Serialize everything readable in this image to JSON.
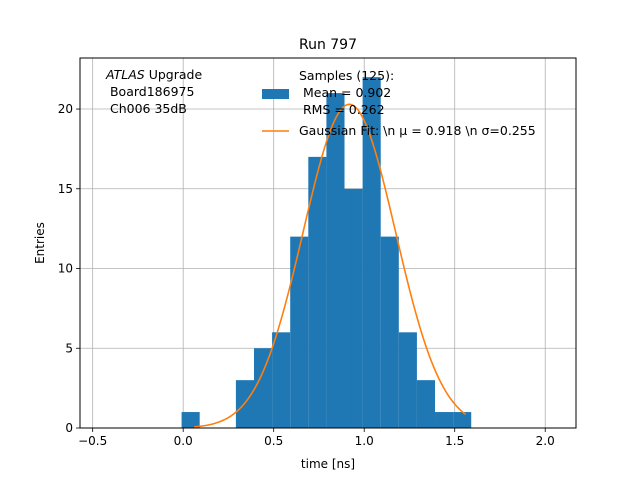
{
  "chart_data": {
    "type": "bar",
    "title": "Run 797",
    "xlabel": "time [ns]",
    "ylabel": "Entries",
    "xlim": [
      -0.57,
      2.17
    ],
    "ylim": [
      0,
      23.2
    ],
    "grid": true,
    "xticks": [
      -0.5,
      0.0,
      0.5,
      1.0,
      1.5,
      2.0
    ],
    "xtick_labels": [
      "−0.5",
      "0.0",
      "0.5",
      "1.0",
      "1.5",
      "2.0"
    ],
    "yticks": [
      0,
      5,
      10,
      15,
      20
    ],
    "ytick_labels": [
      "0",
      "5",
      "10",
      "15",
      "20"
    ],
    "histogram": {
      "color": "#1f77b4",
      "bin_width": 0.1,
      "bins": [
        {
          "x0": -0.0088,
          "value": 1
        },
        {
          "x0": 0.0912,
          "value": 0
        },
        {
          "x0": 0.1912,
          "value": 0
        },
        {
          "x0": 0.2912,
          "value": 3
        },
        {
          "x0": 0.3912,
          "value": 5
        },
        {
          "x0": 0.4912,
          "value": 6
        },
        {
          "x0": 0.5912,
          "value": 12
        },
        {
          "x0": 0.6912,
          "value": 17
        },
        {
          "x0": 0.7912,
          "value": 21
        },
        {
          "x0": 0.8912,
          "value": 15
        },
        {
          "x0": 0.9912,
          "value": 22
        },
        {
          "x0": 1.0912,
          "value": 12
        },
        {
          "x0": 1.1912,
          "value": 6
        },
        {
          "x0": 1.2912,
          "value": 3
        },
        {
          "x0": 1.3912,
          "value": 1
        },
        {
          "x0": 1.4912,
          "value": 1
        }
      ]
    },
    "fit": {
      "color": "#ff7f0e",
      "mu": 0.918,
      "sigma": 0.255,
      "amplitude": 20.3,
      "x_range": [
        0.06,
        1.56
      ]
    },
    "annotation": {
      "italic": "ATLAS",
      "line1_rest": " Upgrade",
      "line2": " Board186975",
      "line3": " Ch006 35dB"
    },
    "legend": {
      "position": "top-right",
      "hist_label_lines": [
        "Samples (125):",
        " Mean = 0.902",
        " RMS = 0.262"
      ],
      "fit_label": "Gaussian Fit: \\n μ = 0.918 \\n σ=0.255"
    }
  }
}
